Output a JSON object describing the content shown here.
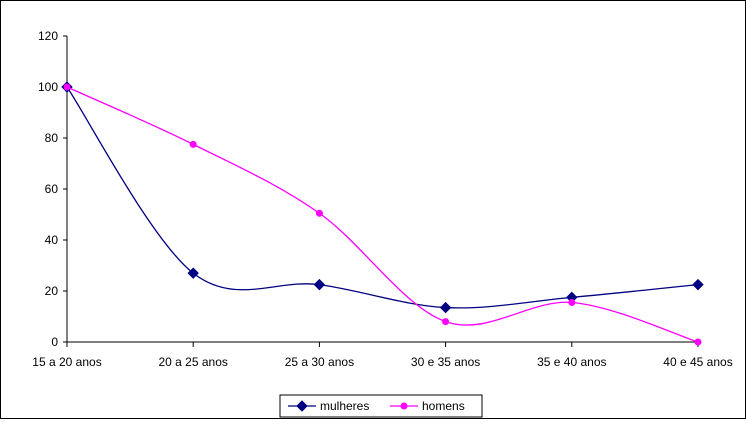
{
  "chart_data": {
    "type": "line",
    "categories": [
      "15 a 20 anos",
      "20 a 25 anos",
      "25 a 30 anos",
      "30 e 35 anos",
      "35 e 40 anos",
      "40 e 45 anos"
    ],
    "series": [
      {
        "name": "mulheres",
        "values": [
          100,
          27,
          22.5,
          13.5,
          17.5,
          22.5
        ],
        "color": "#000080",
        "marker": "diamond"
      },
      {
        "name": "homens",
        "values": [
          100,
          77.5,
          50.5,
          8,
          15.5,
          0
        ],
        "color": "#ff00ff",
        "marker": "circle"
      }
    ],
    "ylim": [
      0,
      120
    ],
    "yticks": [
      "0",
      "20",
      "40",
      "60",
      "80",
      "100",
      "120"
    ],
    "grid": false,
    "smooth": true,
    "legend_position": "bottom-center",
    "title": "",
    "xlabel": "",
    "ylabel": ""
  }
}
